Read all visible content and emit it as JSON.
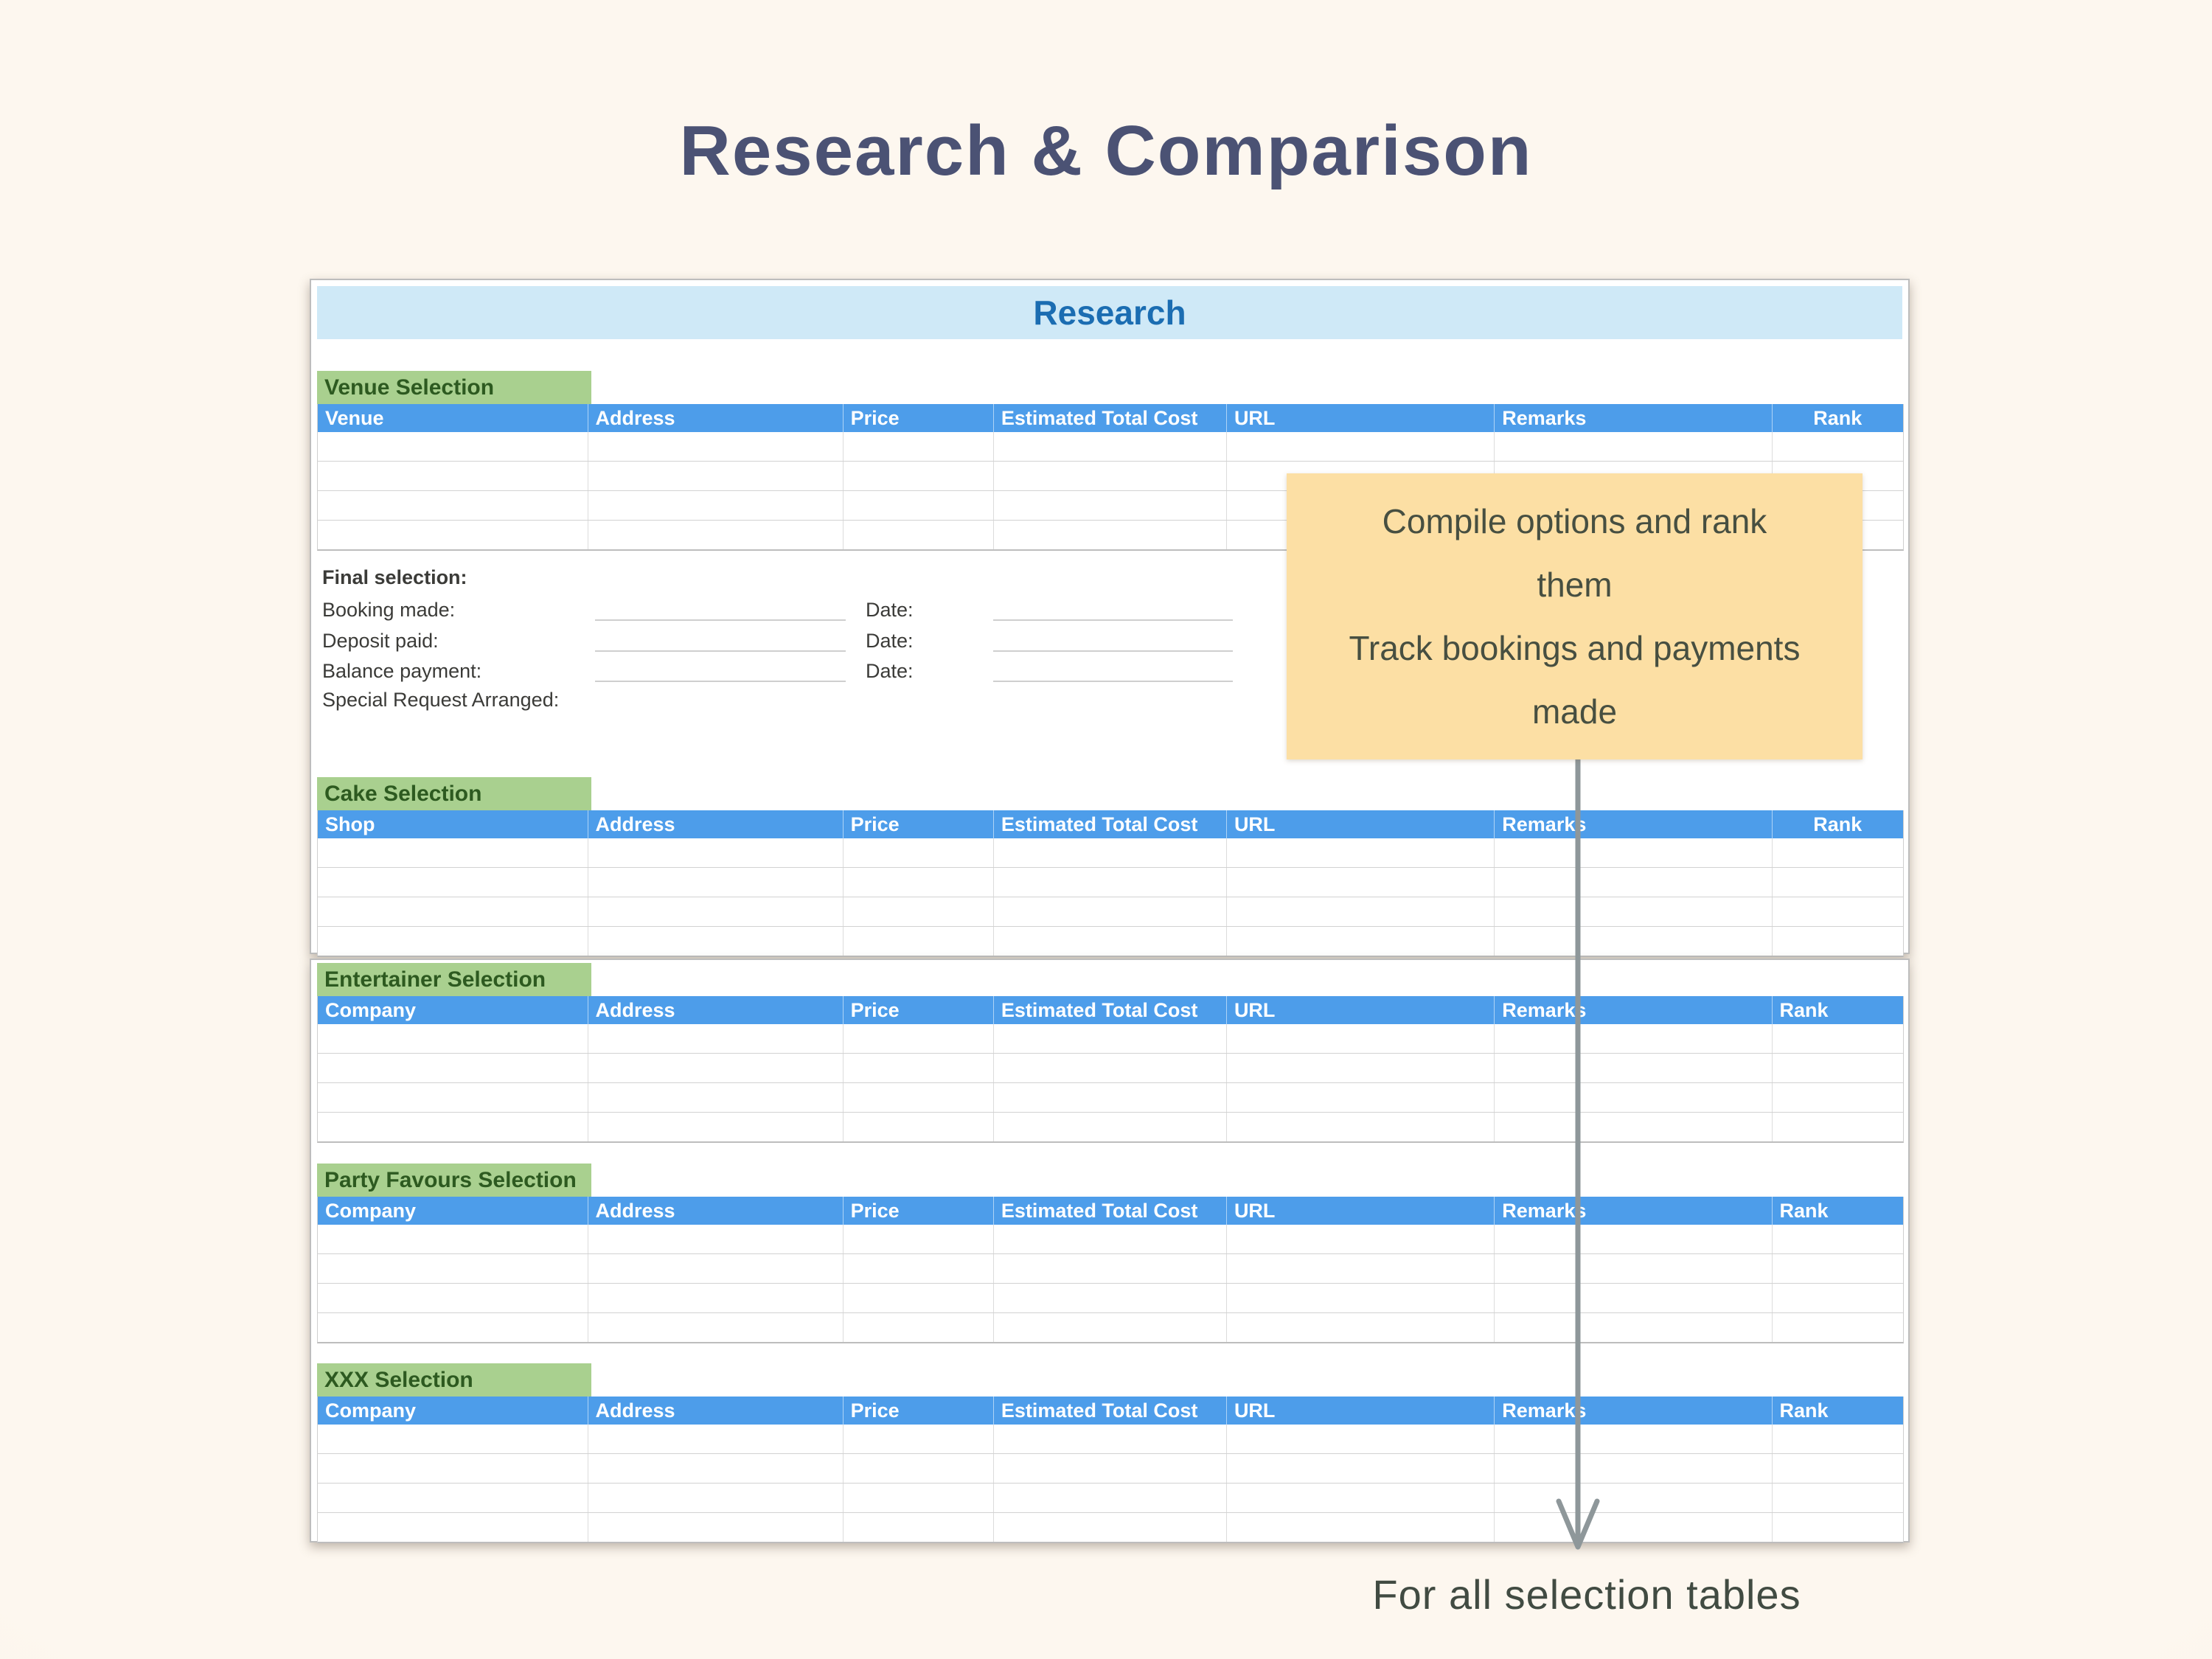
{
  "title": "Research & Comparison",
  "sheet": {
    "banner_title": "Research",
    "column_widths_pct": [
      17.0,
      16.1,
      9.5,
      14.7,
      16.9,
      17.5,
      8.3
    ],
    "body_row_count": 4,
    "tables": [
      {
        "id": "venue",
        "label": "Venue Selection",
        "headers": [
          "Venue",
          "Address",
          "Price",
          "Estimated Total Cost",
          "URL",
          "Remarks",
          "Rank"
        ],
        "rank_align": "center"
      },
      {
        "id": "cake",
        "label": "Cake Selection",
        "headers": [
          "Shop",
          "Address",
          "Price",
          "Estimated Total Cost",
          "URL",
          "Remarks",
          "Rank"
        ],
        "rank_align": "center"
      },
      {
        "id": "entertainer",
        "label": "Entertainer Selection",
        "headers": [
          "Company",
          "Address",
          "Price",
          "Estimated Total Cost",
          "URL",
          "Remarks",
          "Rank"
        ],
        "rank_align": "left"
      },
      {
        "id": "party-favours",
        "label": "Party Favours Selection",
        "headers": [
          "Company",
          "Address",
          "Price",
          "Estimated Total Cost",
          "URL",
          "Remarks",
          "Rank"
        ],
        "rank_align": "left"
      },
      {
        "id": "xxx",
        "label": "XXX Selection",
        "headers": [
          "Company",
          "Address",
          "Price",
          "Estimated Total Cost",
          "URL",
          "Remarks",
          "Rank"
        ],
        "rank_align": "left"
      }
    ],
    "final_selection": {
      "heading": "Final selection:",
      "rows": [
        {
          "label": "Booking made:",
          "value": "",
          "date_label": "Date:",
          "date_value": ""
        },
        {
          "label": "Deposit paid:",
          "value": "",
          "date_label": "Date:",
          "date_value": ""
        },
        {
          "label": "Balance payment:",
          "value": "",
          "date_label": "Date:",
          "date_value": ""
        }
      ],
      "trailing_label": "Special Request Arranged:"
    }
  },
  "annotation": {
    "callout_lines": [
      "Compile options and rank them",
      "Track bookings and payments made"
    ],
    "footer_text": "For all selection tables"
  },
  "colors": {
    "page_bg": "#fbf4ea",
    "title": "#4b5274",
    "banner_bg": "#cfe9f7",
    "banner_text": "#1b6db2",
    "section_label_bg": "#a9d08f",
    "section_label_text": "#2d5a20",
    "table_header_bg": "#4d9dea",
    "table_header_text": "#ffffff",
    "callout_bg": "#fcdfa4",
    "callout_text": "#474f41",
    "arrow": "#8e979a",
    "footer_text": "#414b42"
  }
}
